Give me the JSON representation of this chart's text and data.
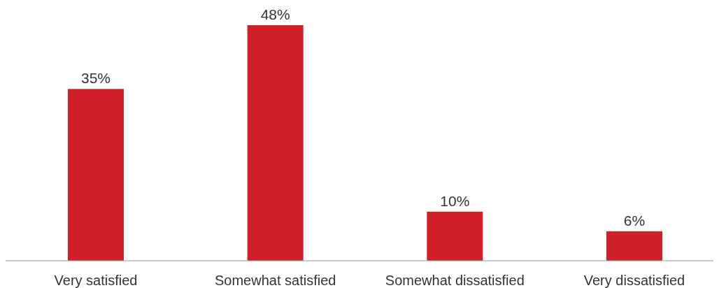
{
  "chart_data": {
    "type": "bar",
    "categories": [
      "Very satisfied",
      "Somewhat satisfied",
      "Somewhat dissatisfied",
      "Very dissatisfied"
    ],
    "values": [
      35,
      48,
      10,
      6
    ],
    "value_labels": [
      "35%",
      "48%",
      "10%",
      "6%"
    ],
    "color": "#d0202a"
  }
}
